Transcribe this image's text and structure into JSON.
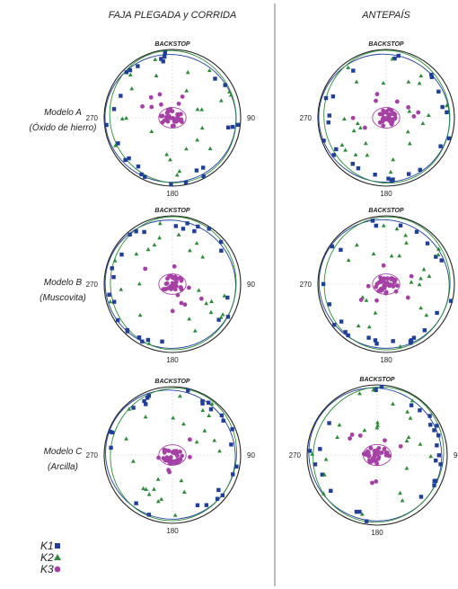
{
  "columns": {
    "left_title": "FAJA PLEGADA y CORRIDA",
    "right_title": "ANTEPAÍS"
  },
  "net_labels": {
    "top": "BACKSTOP",
    "right": "90",
    "bottom": "180",
    "left": "270"
  },
  "rows": [
    {
      "model": "Modelo A",
      "material": "(Óxido de hierro)"
    },
    {
      "model": "Modelo B",
      "material": "(Muscovita)"
    },
    {
      "model": "Modelo C",
      "material": "(Arcilla)"
    }
  ],
  "legend": [
    {
      "label": "K1",
      "symbol": "square",
      "color": "#1f3f99"
    },
    {
      "label": "K2",
      "symbol": "triangle",
      "color": "#2e8b3a"
    },
    {
      "label": "K3",
      "symbol": "circle",
      "color": "#a540a5"
    }
  ],
  "colors": {
    "k1": "#1f3f99",
    "k2": "#2e8b3a",
    "k3": "#a540a5",
    "divider": "#777777"
  }
}
